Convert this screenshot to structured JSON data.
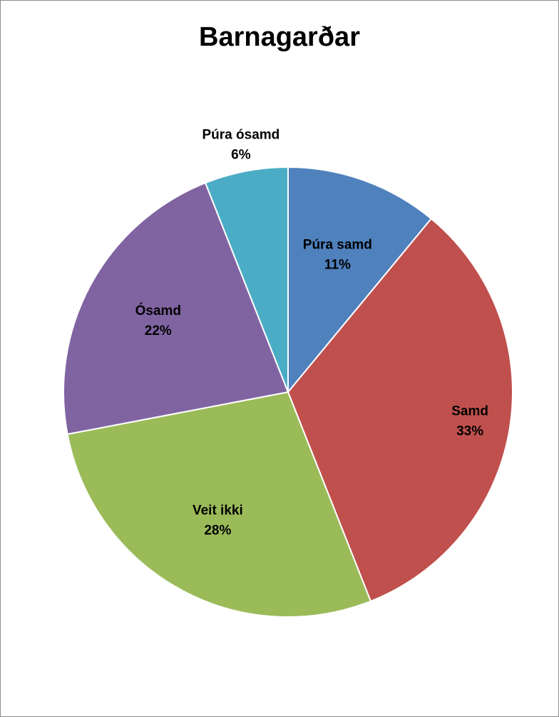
{
  "chart_data": {
    "type": "pie",
    "title": "Barnagarðar",
    "categories": [
      "Púra samd",
      "Samd",
      "Veit ikki",
      "Ósamd",
      "Púra ósamd"
    ],
    "values": [
      11,
      33,
      28,
      22,
      6
    ],
    "value_labels": [
      "11%",
      "33%",
      "28%",
      "22%",
      "6%"
    ],
    "colors": [
      "#4f81bd",
      "#c0504d",
      "#9bbb59",
      "#8064a2",
      "#4bacc6"
    ],
    "legend": "none",
    "start_angle_deg": 0,
    "direction": "clockwise"
  }
}
